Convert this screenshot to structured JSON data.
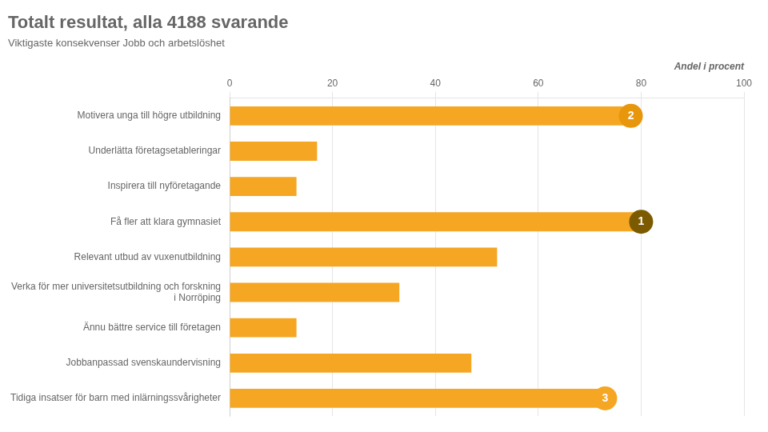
{
  "chart_data": {
    "type": "bar",
    "orientation": "horizontal",
    "title": "Totalt resultat, alla 4188 svarande",
    "subtitle": "Viktigaste konsekvenser Jobb och arbetslöshet",
    "xlabel": "Andel i procent",
    "categories": [
      "Motivera unga till högre utbildning",
      "Underlätta företagsetableringar",
      "Inspirera till nyföretagande",
      "Få fler att klara gymnasiet",
      "Relevant utbud av vuxenutbildning",
      "Verka för mer universitetsutbildning och forskning\ni Norröping",
      "Ännu bättre service till företagen",
      "Jobbanpassad svenskaundervisning",
      "Tidiga insatser för barn med inlärningssvårigheter"
    ],
    "values": [
      78,
      17,
      13,
      80,
      52,
      33,
      13,
      47,
      73
    ],
    "ranks": [
      2,
      null,
      null,
      1,
      null,
      null,
      null,
      null,
      3
    ],
    "rank_colors": {
      "1": "#7B5A00",
      "2": "#E8960C",
      "3": "#F5A623"
    },
    "color": "#F5A623",
    "xlim": [
      0,
      100
    ],
    "xticks": [
      0,
      20,
      40,
      60,
      80,
      100
    ],
    "grid": true
  }
}
